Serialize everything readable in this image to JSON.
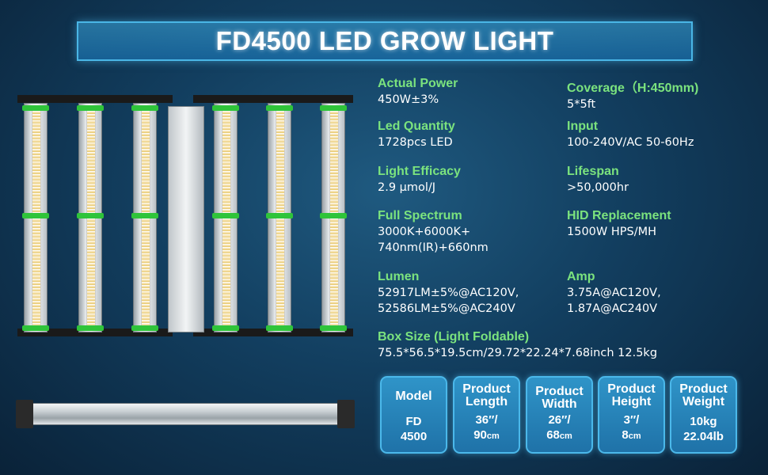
{
  "title": "FD4500 LED GROW LIGHT",
  "specs": {
    "actual_power": {
      "label": "Actual Power",
      "value": "450W±3%"
    },
    "coverage": {
      "label": "Coverage（H:450mm)",
      "value": "5*5ft"
    },
    "led_quantity": {
      "label": "Led Quantity",
      "value": "1728pcs LED"
    },
    "input": {
      "label": "Input",
      "value": "100-240V/AC 50-60Hz"
    },
    "light_efficacy": {
      "label": "Light Efficacy",
      "value": "2.9 μmol/J"
    },
    "lifespan": {
      "label": "Lifespan",
      "value": ">50,000hr"
    },
    "full_spectrum": {
      "label": "Full Spectrum",
      "value_line1": "3000K+6000K+",
      "value_line2": "740nm(IR)+660nm"
    },
    "hid_replacement": {
      "label": "HID Replacement",
      "value": "1500W HPS/MH"
    },
    "lumen": {
      "label": "Lumen",
      "value_line1": "52917LM±5%@AC120V,",
      "value_line2": "52586LM±5%@AC240V"
    },
    "amp": {
      "label": "Amp",
      "value_line1": "3.75A@AC120V,",
      "value_line2": "1.87A@AC240V"
    },
    "box_size": {
      "label": "Box Size (Light Foldable)",
      "value": "75.5*56.5*19.5cm/29.72*22.24*7.68inch 12.5kg"
    }
  },
  "cards": {
    "model": {
      "h1": "Model",
      "h2": "",
      "v1": "FD",
      "v2": "4500",
      "u2": ""
    },
    "length": {
      "h1": "Product",
      "h2": "Length",
      "v1": "36′′/",
      "v2": "90",
      "u2": "cm"
    },
    "width": {
      "h1": "Product",
      "h2": "Width",
      "v1": "26′′/",
      "v2": "68",
      "u2": "cm"
    },
    "height": {
      "h1": "Product",
      "h2": "Height",
      "v1": "3′′/",
      "v2": "8",
      "u2": "cm"
    },
    "weight": {
      "h1": "Product",
      "h2": "Weight",
      "v1": "10kg",
      "v2": "22.04lb",
      "u2": ""
    }
  },
  "colors": {
    "label_green": "#7be37e",
    "accent_blue": "#4ab6e6",
    "background": "#123e5f"
  },
  "icons": [
    "led-grow-light-image",
    "led-bar-side-view-image"
  ]
}
